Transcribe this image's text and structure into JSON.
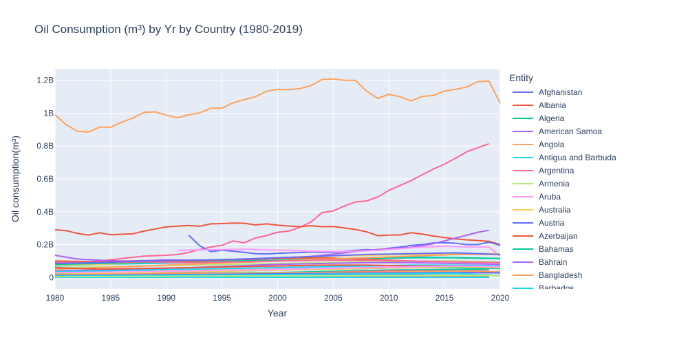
{
  "chart_data": {
    "type": "line",
    "title": "Oil Consumption (m³) by Yr by Country (1980-2019)",
    "xlabel": "Year",
    "ylabel": "Oil consumption(m³)",
    "xlim": [
      1980,
      2020
    ],
    "ylim": [
      -0.07,
      1.27
    ],
    "y_unit": "billion m³",
    "x_ticks": [
      1980,
      1985,
      1990,
      1995,
      2000,
      2005,
      2010,
      2015,
      2020
    ],
    "x_tick_labels": [
      "1980",
      "1985",
      "1990",
      "1995",
      "2000",
      "2005",
      "2010",
      "2015",
      "2020"
    ],
    "y_ticks": [
      0,
      0.2,
      0.4,
      0.6,
      0.8,
      1.0,
      1.2
    ],
    "y_tick_labels": [
      "0",
      "0.2B",
      "0.4B",
      "0.6B",
      "0.8B",
      "1B",
      "1.2B"
    ],
    "grid": true,
    "background": "#e5ecf6",
    "legend": {
      "title": "Entity",
      "position": "right"
    },
    "series": [
      {
        "name": "Afghanistan",
        "color": "#636efa",
        "x": [
          1980,
          2019
        ],
        "y": [
          0.003,
          0.005
        ]
      },
      {
        "name": "Albania",
        "color": "#EF553B",
        "x": [
          1980,
          2019
        ],
        "y": [
          0.007,
          0.006
        ]
      },
      {
        "name": "Algeria",
        "color": "#00cc96",
        "x": [
          1980,
          1990,
          2000,
          2010,
          2019
        ],
        "y": [
          0.02,
          0.025,
          0.03,
          0.045,
          0.05
        ]
      },
      {
        "name": "American Samoa",
        "color": "#ab63fa",
        "x": [
          1980,
          2019
        ],
        "y": [
          0.001,
          0.001
        ]
      },
      {
        "name": "Angola",
        "color": "#FFA15A",
        "x": [
          1980,
          2019
        ],
        "y": [
          0.004,
          0.012
        ]
      },
      {
        "name": "Antigua and Barbuda",
        "color": "#19d3f3",
        "x": [
          1980,
          2019
        ],
        "y": [
          0.001,
          0.001
        ]
      },
      {
        "name": "Argentina",
        "color": "#FF6692",
        "x": [
          1980,
          1990,
          2000,
          2010,
          2019
        ],
        "y": [
          0.03,
          0.025,
          0.025,
          0.04,
          0.04
        ]
      },
      {
        "name": "Armenia",
        "color": "#B6E880",
        "x": [
          1992,
          2019
        ],
        "y": [
          0.003,
          0.002
        ]
      },
      {
        "name": "Aruba",
        "color": "#FF97FF",
        "x": [
          1980,
          2019
        ],
        "y": [
          0.001,
          0.001
        ]
      },
      {
        "name": "Australia",
        "color": "#FECB52",
        "x": [
          1980,
          1990,
          2000,
          2010,
          2019
        ],
        "y": [
          0.04,
          0.045,
          0.05,
          0.06,
          0.065
        ]
      },
      {
        "name": "Austria",
        "color": "#636efa",
        "x": [
          1980,
          2019
        ],
        "y": [
          0.018,
          0.015
        ]
      },
      {
        "name": "Azerbaijan",
        "color": "#EF553B",
        "x": [
          1992,
          2019
        ],
        "y": [
          0.01,
          0.006
        ]
      },
      {
        "name": "Bahamas",
        "color": "#00cc96",
        "x": [
          1980,
          2019
        ],
        "y": [
          0.002,
          0.002
        ]
      },
      {
        "name": "Bahrain",
        "color": "#ab63fa",
        "x": [
          1980,
          2019
        ],
        "y": [
          0.003,
          0.008
        ]
      },
      {
        "name": "Bangladesh",
        "color": "#FFA15A",
        "x": [
          1980,
          2019
        ],
        "y": [
          0.002,
          0.01
        ]
      },
      {
        "name": "Barbados",
        "color": "#19d3f3",
        "x": [
          1980,
          2019
        ],
        "y": [
          0.001,
          0.001
        ]
      },
      {
        "name": "",
        "color": "#FFA15A",
        "x": [
          1980,
          1981,
          1982,
          1983,
          1984,
          1985,
          1986,
          1987,
          1988,
          1989,
          1990,
          1991,
          1992,
          1993,
          1994,
          1995,
          1996,
          1997,
          1998,
          1999,
          2000,
          2001,
          2002,
          2003,
          2004,
          2005,
          2006,
          2007,
          2008,
          2009,
          2010,
          2011,
          2012,
          2013,
          2014,
          2015,
          2016,
          2017,
          2018,
          2019,
          2020
        ],
        "y": [
          0.99,
          0.93,
          0.89,
          0.885,
          0.915,
          0.915,
          0.945,
          0.97,
          1.005,
          1.008,
          0.988,
          0.972,
          0.99,
          1.002,
          1.03,
          1.03,
          1.063,
          1.082,
          1.1,
          1.133,
          1.145,
          1.143,
          1.15,
          1.168,
          1.205,
          1.208,
          1.2,
          1.2,
          1.133,
          1.09,
          1.115,
          1.1,
          1.075,
          1.102,
          1.108,
          1.135,
          1.145,
          1.16,
          1.192,
          1.195,
          1.06
        ]
      },
      {
        "name": "",
        "color": "#FF6692",
        "x": [
          1980,
          1982,
          1984,
          1986,
          1988,
          1990,
          1991,
          1992,
          1993,
          1994,
          1995,
          1996,
          1997,
          1998,
          1999,
          2000,
          2001,
          2002,
          2003,
          2004,
          2005,
          2006,
          2007,
          2008,
          2009,
          2010,
          2011,
          2012,
          2013,
          2014,
          2015,
          2016,
          2017,
          2018,
          2019
        ],
        "y": [
          0.09,
          0.09,
          0.1,
          0.115,
          0.13,
          0.135,
          0.14,
          0.152,
          0.17,
          0.185,
          0.196,
          0.222,
          0.212,
          0.24,
          0.255,
          0.275,
          0.282,
          0.305,
          0.338,
          0.395,
          0.405,
          0.435,
          0.46,
          0.466,
          0.49,
          0.53,
          0.56,
          0.59,
          0.625,
          0.66,
          0.69,
          0.726,
          0.765,
          0.79,
          0.814
        ]
      },
      {
        "name": "",
        "color": "#EF553B",
        "x": [
          1980,
          1981,
          1982,
          1983,
          1984,
          1985,
          1986,
          1987,
          1988,
          1989,
          1990,
          1991,
          1992,
          1993,
          1994,
          1995,
          1996,
          1997,
          1998,
          1999,
          2000,
          2001,
          2002,
          2003,
          2004,
          2005,
          2006,
          2007,
          2008,
          2009,
          2010,
          2011,
          2012,
          2013,
          2014,
          2015,
          2016,
          2017,
          2018,
          2019,
          2020
        ],
        "y": [
          0.29,
          0.285,
          0.268,
          0.258,
          0.272,
          0.26,
          0.263,
          0.266,
          0.282,
          0.295,
          0.308,
          0.312,
          0.316,
          0.312,
          0.326,
          0.328,
          0.331,
          0.33,
          0.32,
          0.326,
          0.318,
          0.313,
          0.309,
          0.315,
          0.309,
          0.31,
          0.302,
          0.292,
          0.278,
          0.254,
          0.258,
          0.259,
          0.272,
          0.264,
          0.252,
          0.243,
          0.235,
          0.229,
          0.225,
          0.22,
          0.2
        ]
      },
      {
        "name": "",
        "color": "#636efa",
        "x": [
          1992,
          1993,
          1994,
          1995,
          1996,
          1997,
          1998,
          1999,
          2000,
          2001,
          2002,
          2003,
          2004,
          2005,
          2006,
          2007,
          2008,
          2009,
          2010,
          2011,
          2012,
          2013,
          2014,
          2015,
          2016,
          2017,
          2018,
          2019,
          2020
        ],
        "y": [
          0.257,
          0.193,
          0.157,
          0.166,
          0.16,
          0.153,
          0.145,
          0.143,
          0.147,
          0.15,
          0.152,
          0.155,
          0.153,
          0.153,
          0.16,
          0.165,
          0.17,
          0.165,
          0.178,
          0.185,
          0.195,
          0.2,
          0.21,
          0.212,
          0.208,
          0.2,
          0.2,
          0.215,
          0.195
        ]
      },
      {
        "name": "",
        "color": "#ab63fa",
        "x": [
          1980,
          1982,
          1984,
          1986,
          1988,
          1990,
          1992,
          1994,
          1996,
          1998,
          2000,
          2002,
          2004,
          2006,
          2008,
          2010,
          2012,
          2014,
          2016,
          2018,
          2019
        ],
        "y": [
          0.135,
          0.112,
          0.105,
          0.1,
          0.102,
          0.107,
          0.105,
          0.1,
          0.104,
          0.11,
          0.115,
          0.122,
          0.135,
          0.15,
          0.165,
          0.175,
          0.183,
          0.205,
          0.24,
          0.275,
          0.287
        ]
      },
      {
        "name": "",
        "color": "#FF97FF",
        "x": [
          1991,
          1993,
          1995,
          1997,
          1999,
          2001,
          2003,
          2005,
          2007,
          2009,
          2011,
          2013,
          2015,
          2017,
          2019,
          2020
        ],
        "y": [
          0.165,
          0.168,
          0.17,
          0.172,
          0.168,
          0.165,
          0.16,
          0.158,
          0.16,
          0.165,
          0.175,
          0.185,
          0.19,
          0.185,
          0.185,
          0.13
        ]
      },
      {
        "name": "",
        "color": "#19d3f3",
        "x": [
          1980,
          1984,
          1988,
          1992,
          1996,
          2000,
          2004,
          2008,
          2012,
          2016,
          2020
        ],
        "y": [
          0.07,
          0.08,
          0.085,
          0.09,
          0.095,
          0.1,
          0.11,
          0.12,
          0.125,
          0.12,
          0.115
        ]
      },
      {
        "name": "",
        "color": "#FECB52",
        "x": [
          1980,
          1984,
          1988,
          1992,
          1996,
          2000,
          2004,
          2008,
          2012,
          2016,
          2020
        ],
        "y": [
          0.075,
          0.08,
          0.09,
          0.1,
          0.11,
          0.12,
          0.13,
          0.135,
          0.14,
          0.145,
          0.145
        ]
      },
      {
        "name": "",
        "color": "#00cc96",
        "x": [
          1980,
          1984,
          1988,
          1992,
          1996,
          2000,
          2004,
          2008,
          2012,
          2016,
          2020
        ],
        "y": [
          0.08,
          0.085,
          0.09,
          0.095,
          0.1,
          0.105,
          0.11,
          0.115,
          0.12,
          0.12,
          0.115
        ]
      },
      {
        "name": "",
        "color": "#EF553B",
        "x": [
          1980,
          1984,
          1988,
          1992,
          1996,
          2000,
          2004,
          2008,
          2012,
          2016,
          2020
        ],
        "y": [
          0.1,
          0.095,
          0.1,
          0.1,
          0.11,
          0.115,
          0.12,
          0.11,
          0.1,
          0.095,
          0.09
        ]
      },
      {
        "name": "",
        "color": "#B6E880",
        "x": [
          1980,
          1984,
          1988,
          1992,
          1996,
          2000,
          2004,
          2008,
          2012,
          2016,
          2020
        ],
        "y": [
          0.06,
          0.065,
          0.07,
          0.075,
          0.08,
          0.085,
          0.09,
          0.095,
          0.1,
          0.1,
          0.095
        ]
      },
      {
        "name": "",
        "color": "#FFA15A",
        "x": [
          1980,
          1984,
          1988,
          1992,
          1996,
          2000,
          2004,
          2008,
          2012,
          2016,
          2020
        ],
        "y": [
          0.05,
          0.06,
          0.07,
          0.08,
          0.09,
          0.1,
          0.11,
          0.12,
          0.13,
          0.14,
          0.14
        ]
      },
      {
        "name": "",
        "color": "#FF6692",
        "x": [
          1980,
          1984,
          1988,
          1992,
          1996,
          2000,
          2004,
          2008,
          2012,
          2016,
          2020
        ],
        "y": [
          0.09,
          0.09,
          0.095,
          0.09,
          0.095,
          0.1,
          0.105,
          0.105,
          0.1,
          0.095,
          0.09
        ]
      },
      {
        "name": "",
        "color": "#636efa",
        "x": [
          1980,
          1984,
          1988,
          1992,
          1996,
          2000,
          2004,
          2008,
          2012,
          2016,
          2020
        ],
        "y": [
          0.085,
          0.09,
          0.1,
          0.105,
          0.11,
          0.12,
          0.13,
          0.14,
          0.145,
          0.15,
          0.14
        ]
      },
      {
        "name": "",
        "color": "#ab63fa",
        "x": [
          1980,
          1984,
          1988,
          1992,
          1996,
          2000,
          2004,
          2008,
          2012,
          2016,
          2020
        ],
        "y": [
          0.04,
          0.045,
          0.05,
          0.06,
          0.07,
          0.08,
          0.085,
          0.09,
          0.09,
          0.085,
          0.08
        ]
      },
      {
        "name": "",
        "color": "#19d3f3",
        "x": [
          1980,
          1984,
          1988,
          1992,
          1996,
          2000,
          2004,
          2008,
          2012,
          2016,
          2020
        ],
        "y": [
          0.035,
          0.04,
          0.045,
          0.05,
          0.055,
          0.06,
          0.065,
          0.07,
          0.075,
          0.075,
          0.07
        ]
      },
      {
        "name": "",
        "color": "#EF553B",
        "x": [
          1980,
          1984,
          1988,
          1992,
          1996,
          2000,
          2004,
          2008,
          2012,
          2016,
          2020
        ],
        "y": [
          0.06,
          0.05,
          0.055,
          0.06,
          0.065,
          0.07,
          0.075,
          0.075,
          0.07,
          0.07,
          0.06
        ]
      },
      {
        "name": "",
        "color": "#00cc96",
        "x": [
          1980,
          1984,
          1988,
          1992,
          1996,
          2000,
          2004,
          2008,
          2012,
          2016,
          2020
        ],
        "y": [
          0.025,
          0.03,
          0.03,
          0.035,
          0.04,
          0.045,
          0.05,
          0.055,
          0.06,
          0.06,
          0.055
        ]
      },
      {
        "name": "",
        "color": "#FECB52",
        "x": [
          1980,
          1984,
          1988,
          1992,
          1996,
          2000,
          2004,
          2008,
          2012,
          2016,
          2020
        ],
        "y": [
          0.02,
          0.025,
          0.03,
          0.035,
          0.04,
          0.045,
          0.05,
          0.055,
          0.06,
          0.065,
          0.06
        ]
      },
      {
        "name": "",
        "color": "#FF97FF",
        "x": [
          1980,
          1984,
          1988,
          1992,
          1996,
          2000,
          2004,
          2008,
          2012,
          2016,
          2020
        ],
        "y": [
          0.03,
          0.032,
          0.035,
          0.04,
          0.045,
          0.05,
          0.055,
          0.06,
          0.065,
          0.07,
          0.065
        ]
      },
      {
        "name": "",
        "color": "#FFA15A",
        "x": [
          1980,
          1984,
          1988,
          1992,
          1996,
          2000,
          2004,
          2008,
          2012,
          2016,
          2020
        ],
        "y": [
          0.015,
          0.018,
          0.02,
          0.022,
          0.025,
          0.028,
          0.03,
          0.032,
          0.035,
          0.038,
          0.035
        ]
      },
      {
        "name": "",
        "color": "#636efa",
        "x": [
          1980,
          1984,
          1988,
          1992,
          1996,
          2000,
          2004,
          2008,
          2012,
          2016,
          2020
        ],
        "y": [
          0.012,
          0.014,
          0.016,
          0.018,
          0.02,
          0.022,
          0.024,
          0.026,
          0.028,
          0.03,
          0.028
        ]
      },
      {
        "name": "",
        "color": "#19d3f3",
        "x": [
          1980,
          1984,
          1988,
          1992,
          1996,
          2000,
          2004,
          2008,
          2012,
          2016,
          2020
        ],
        "y": [
          0.008,
          0.01,
          0.012,
          0.014,
          0.016,
          0.018,
          0.02,
          0.022,
          0.024,
          0.026,
          0.01
        ]
      },
      {
        "name": "",
        "color": "#B6E880",
        "x": [
          1980,
          1984,
          1988,
          1992,
          1996,
          2000,
          2004,
          2008,
          2012,
          2016,
          2020
        ],
        "y": [
          0.005,
          0.006,
          0.007,
          0.008,
          0.009,
          0.01,
          0.011,
          0.012,
          0.013,
          0.014,
          0.012
        ]
      }
    ]
  }
}
